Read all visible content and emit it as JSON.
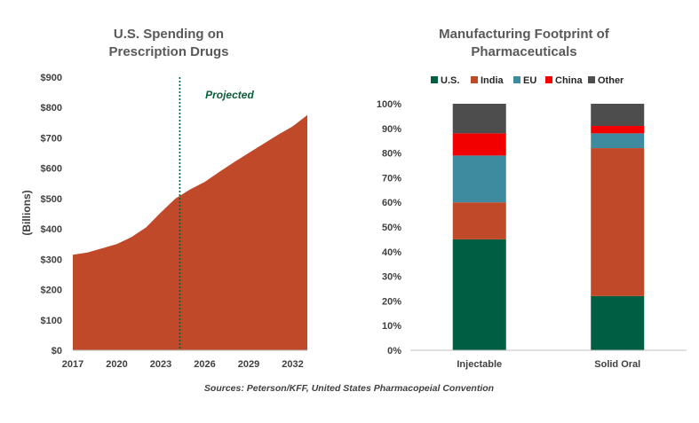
{
  "source_note": "Sources: Peterson/KFF, United States Pharmacopeial Convention",
  "colors": {
    "area": "#C0492A",
    "us": "#005E42",
    "india": "#C0492A",
    "eu": "#3E8BA0",
    "china": "#F20000",
    "other": "#4D4D4D",
    "projected": "#0B5E36"
  },
  "chart_data": [
    {
      "type": "area",
      "title_lines": [
        "U.S. Spending on",
        "Prescription Drugs"
      ],
      "xlabel": "",
      "ylabel": "(Billions)",
      "x": [
        2017,
        2018,
        2019,
        2020,
        2021,
        2022,
        2023,
        2024,
        2025,
        2026,
        2027,
        2028,
        2029,
        2030,
        2031,
        2032,
        2033
      ],
      "values": [
        315,
        322,
        336,
        350,
        373,
        405,
        454,
        500,
        530,
        555,
        588,
        620,
        650,
        680,
        710,
        738,
        775
      ],
      "xlim": [
        2017,
        2033
      ],
      "xticks": [
        2017,
        2020,
        2023,
        2026,
        2029,
        2032
      ],
      "xtick_labels": [
        "2017",
        "2020",
        "2023",
        "2026",
        "2029",
        "2032"
      ],
      "ylim": [
        0,
        900
      ],
      "yticks": [
        0,
        100,
        200,
        300,
        400,
        500,
        600,
        700,
        800,
        900
      ],
      "ytick_labels": [
        "$0",
        "$100",
        "$200",
        "$300",
        "$400",
        "$500",
        "$600",
        "$700",
        "$800",
        "$900"
      ],
      "projection_start": 2024.3,
      "projection_label": "Projected",
      "grid": false,
      "legend": false
    },
    {
      "type": "bar",
      "stacked": true,
      "title_lines": [
        "Manufacturing Footprint of",
        "Pharmaceuticals"
      ],
      "categories": [
        "Injectable",
        "Solid Oral"
      ],
      "series": [
        {
          "name": "U.S.",
          "color_key": "us",
          "values": [
            45,
            22
          ]
        },
        {
          "name": "India",
          "color_key": "india",
          "values": [
            15,
            60
          ]
        },
        {
          "name": "EU",
          "color_key": "eu",
          "values": [
            19,
            6
          ]
        },
        {
          "name": "China",
          "color_key": "china",
          "values": [
            9,
            3
          ]
        },
        {
          "name": "Other",
          "color_key": "other",
          "values": [
            12,
            9
          ]
        }
      ],
      "ylim": [
        0,
        100
      ],
      "yticks": [
        0,
        10,
        20,
        30,
        40,
        50,
        60,
        70,
        80,
        90,
        100
      ],
      "ytick_labels": [
        "0%",
        "10%",
        "20%",
        "30%",
        "40%",
        "50%",
        "60%",
        "70%",
        "80%",
        "90%",
        "100%"
      ],
      "legend_position": "top",
      "grid": false
    }
  ]
}
